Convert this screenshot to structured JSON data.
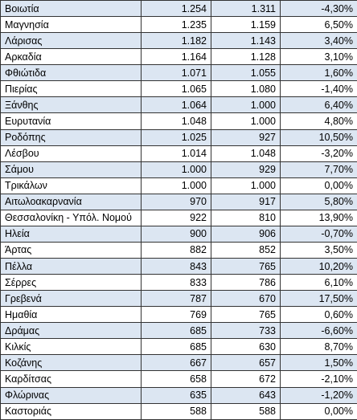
{
  "table": {
    "rows": [
      [
        "Βοιωτία",
        "1.254",
        "1.311",
        "-4,30%"
      ],
      [
        "Μαγνησία",
        "1.235",
        "1.159",
        "6,50%"
      ],
      [
        "Λάρισας",
        "1.182",
        "1.143",
        "3,40%"
      ],
      [
        "Αρκαδία",
        "1.164",
        "1.128",
        "3,10%"
      ],
      [
        "Φθιώτιδα",
        "1.071",
        "1.055",
        "1,60%"
      ],
      [
        "Πιερίας",
        "1.065",
        "1.080",
        "-1,40%"
      ],
      [
        "Ξάνθης",
        "1.064",
        "1.000",
        "6,40%"
      ],
      [
        "Ευρυτανία",
        "1.048",
        "1.000",
        "4,80%"
      ],
      [
        "Ροδόπης",
        "1.025",
        "927",
        "10,50%"
      ],
      [
        "Λέσβου",
        "1.014",
        "1.048",
        "-3,20%"
      ],
      [
        "Σάμου",
        "1.000",
        "929",
        "7,70%"
      ],
      [
        "Τρικάλων",
        "1.000",
        "1.000",
        "0,00%"
      ],
      [
        "Αιτωλοακαρνανία",
        "970",
        "917",
        "5,80%"
      ],
      [
        "Θεσσαλονίκη - Υπόλ. Νομού",
        "922",
        "810",
        "13,90%"
      ],
      [
        "Ηλεία",
        "900",
        "906",
        "-0,70%"
      ],
      [
        "Άρτας",
        "882",
        "852",
        "3,50%"
      ],
      [
        "Πέλλα",
        "843",
        "765",
        "10,20%"
      ],
      [
        "Σέρρες",
        "833",
        "786",
        "6,10%"
      ],
      [
        "Γρεβενά",
        "787",
        "670",
        "17,50%"
      ],
      [
        "Ημαθία",
        "769",
        "765",
        "0,60%"
      ],
      [
        "Δράμας",
        "685",
        "733",
        "-6,60%"
      ],
      [
        "Κιλκίς",
        "685",
        "630",
        "8,70%"
      ],
      [
        "Κοζάνης",
        "667",
        "657",
        "1,50%"
      ],
      [
        "Καρδίτσας",
        "658",
        "672",
        "-2,10%"
      ],
      [
        "Φλώρινας",
        "635",
        "643",
        "-1,20%"
      ],
      [
        "Καστοριάς",
        "588",
        "588",
        "0,00%"
      ]
    ]
  }
}
